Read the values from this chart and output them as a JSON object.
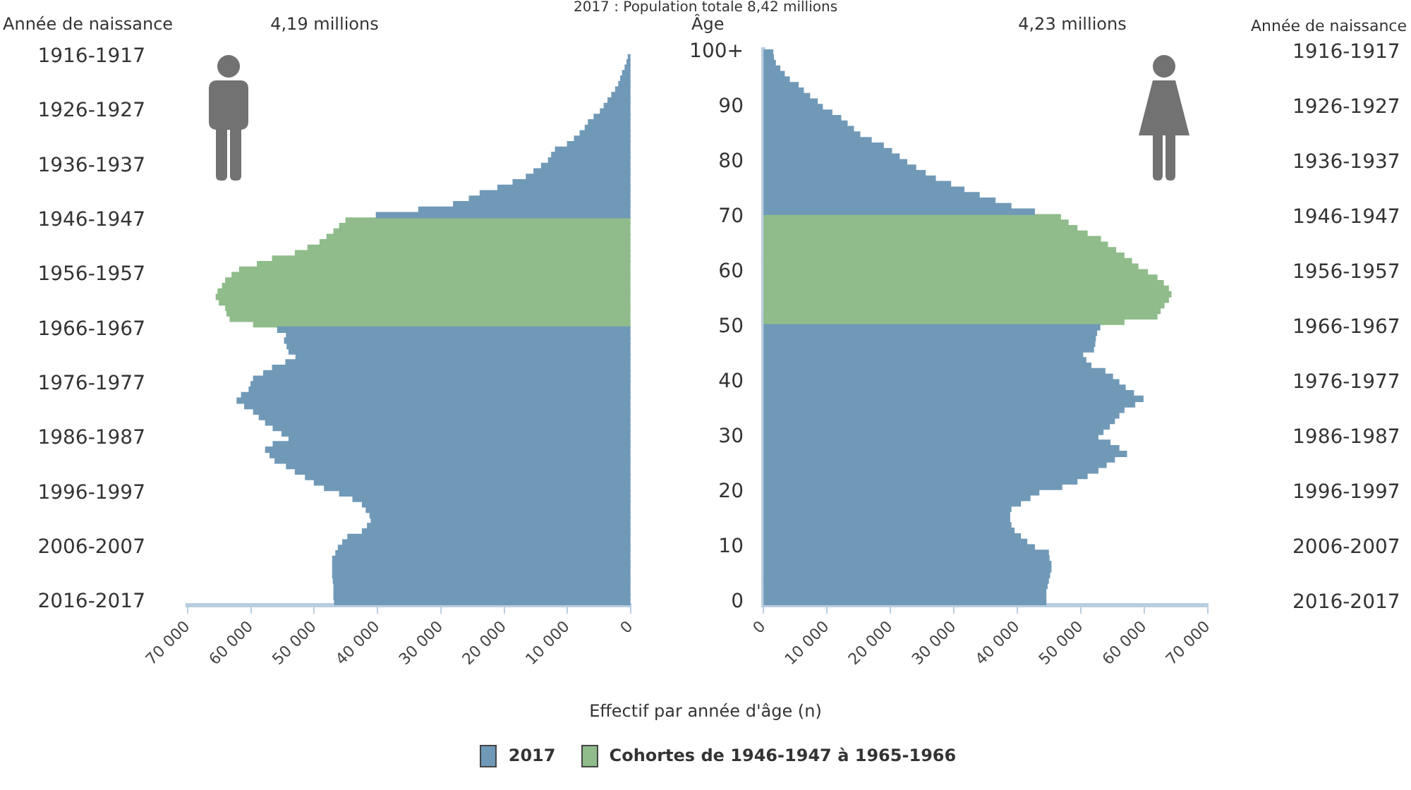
{
  "chart_data": [
    {
      "type": "bar",
      "orientation": "horizontal",
      "stacked": true,
      "title": "2017 : Population totale 8,42 millions",
      "subtitle": "4,19 millions",
      "ylabel": "Année de naissance",
      "xlabel": "Effectif par année d'âge (n)",
      "legend": "bottom",
      "grid": false,
      "categories": [
        "1916-1917",
        null,
        null,
        null,
        null,
        null,
        null,
        null,
        null,
        null,
        "1926-1927",
        null,
        null,
        null,
        null,
        null,
        null,
        null,
        null,
        null,
        "1936-1937",
        null,
        null,
        null,
        null,
        null,
        null,
        null,
        null,
        null,
        "1946-1947",
        null,
        null,
        null,
        null,
        null,
        null,
        null,
        null,
        null,
        "1956-1957",
        null,
        null,
        null,
        null,
        null,
        null,
        null,
        null,
        null,
        "1966-1967",
        null,
        null,
        null,
        null,
        null,
        null,
        null,
        null,
        null,
        "1976-1977",
        null,
        null,
        null,
        null,
        null,
        null,
        null,
        null,
        null,
        "1986-1987",
        null,
        null,
        null,
        null,
        null,
        null,
        null,
        null,
        null,
        "1996-1997",
        null,
        null,
        null,
        null,
        null,
        null,
        null,
        null,
        null,
        "2006-2007",
        null,
        null,
        null,
        null,
        null,
        null,
        null,
        null,
        null,
        "2016-2017"
      ],
      "xlim": [
        70000,
        0
      ],
      "xticks": [
        {
          "value": 70000,
          "label": "70 000"
        },
        {
          "value": 60000,
          "label": "60 000"
        },
        {
          "value": 50000,
          "label": "50 000"
        },
        {
          "value": 40000,
          "label": "40 000"
        },
        {
          "value": 30000,
          "label": "30 000"
        },
        {
          "value": 20000,
          "label": "20 000"
        },
        {
          "value": 10000,
          "label": "10 000"
        },
        0
      ],
      "series": [
        {
          "name": "2017",
          "color": "#7099b7",
          "values": [
            400,
            600,
            900,
            1300,
            1600,
            1900,
            2400,
            3000,
            3600,
            4200,
            4800,
            5800,
            6700,
            7200,
            8000,
            8900,
            10000,
            11900,
            12500,
            13000,
            14100,
            15300,
            16500,
            18600,
            21000,
            23800,
            25500,
            28000,
            33500,
            40200,
            null,
            null,
            null,
            null,
            null,
            null,
            null,
            null,
            null,
            null,
            null,
            null,
            null,
            null,
            null,
            null,
            null,
            null,
            null,
            null,
            55800,
            54400,
            54700,
            54300,
            54000,
            52900,
            54500,
            56600,
            58000,
            59600,
            60000,
            60300,
            61500,
            62200,
            61000,
            59600,
            58700,
            57700,
            56500,
            55100,
            54000,
            56500,
            57700,
            57000,
            56200,
            54400,
            53000,
            51400,
            50000,
            48400,
            46000,
            43900,
            42400,
            41800,
            41200,
            41000,
            41600,
            42400,
            44700,
            45500,
            46200,
            46600,
            47100,
            47100,
            47100,
            47100,
            47000,
            46900,
            46900,
            46900,
            46800
          ]
        },
        {
          "name": "Cohortes de 1946-1947 à 1965-1966",
          "color": "#8fbc8a",
          "values": [
            null,
            null,
            null,
            null,
            null,
            null,
            null,
            null,
            null,
            null,
            null,
            null,
            null,
            null,
            null,
            null,
            null,
            null,
            null,
            null,
            null,
            null,
            null,
            null,
            null,
            null,
            null,
            null,
            null,
            null,
            45000,
            46000,
            46900,
            48000,
            49100,
            51000,
            53000,
            56600,
            59000,
            61800,
            63000,
            64000,
            64500,
            65200,
            65500,
            65000,
            64000,
            63800,
            63300,
            59600,
            null,
            null,
            null,
            null,
            null,
            null,
            null,
            null,
            null,
            null,
            null,
            null,
            null,
            null,
            null,
            null,
            null,
            null,
            null,
            null,
            null,
            null,
            null,
            null,
            null,
            null,
            null,
            null,
            null,
            null,
            null,
            null,
            null,
            null,
            null,
            null,
            null,
            null,
            null,
            null,
            null,
            null,
            null,
            null,
            null,
            null,
            null,
            null,
            null,
            null,
            null
          ]
        }
      ]
    },
    {
      "type": "bar",
      "orientation": "horizontal",
      "stacked": true,
      "subtitle": "4,23 millions",
      "ylabel": "Âge",
      "y2label": "Année de naissance",
      "grid": false,
      "categories": [
        "100+",
        null,
        null,
        null,
        null,
        null,
        null,
        null,
        null,
        null,
        "90",
        null,
        null,
        null,
        null,
        null,
        null,
        null,
        null,
        null,
        "80",
        null,
        null,
        null,
        null,
        null,
        null,
        null,
        null,
        null,
        "70",
        null,
        null,
        null,
        null,
        null,
        null,
        null,
        null,
        null,
        "60",
        null,
        null,
        null,
        null,
        null,
        null,
        null,
        null,
        null,
        "50",
        null,
        null,
        null,
        null,
        null,
        null,
        null,
        null,
        null,
        "40",
        null,
        null,
        null,
        null,
        null,
        null,
        null,
        null,
        null,
        "30",
        null,
        null,
        null,
        null,
        null,
        null,
        null,
        null,
        null,
        "20",
        null,
        null,
        null,
        null,
        null,
        null,
        null,
        null,
        null,
        "10",
        null,
        null,
        null,
        null,
        null,
        null,
        null,
        null,
        null,
        "0"
      ],
      "y2_categories": [
        "1916-1917",
        null,
        null,
        null,
        null,
        null,
        null,
        null,
        null,
        null,
        "1926-1927",
        null,
        null,
        null,
        null,
        null,
        null,
        null,
        null,
        null,
        "1936-1937",
        null,
        null,
        null,
        null,
        null,
        null,
        null,
        null,
        null,
        "1946-1947",
        null,
        null,
        null,
        null,
        null,
        null,
        null,
        null,
        null,
        "1956-1957",
        null,
        null,
        null,
        null,
        null,
        null,
        null,
        null,
        null,
        "1966-1967",
        null,
        null,
        null,
        null,
        null,
        null,
        null,
        null,
        null,
        "1976-1977",
        null,
        null,
        null,
        null,
        null,
        null,
        null,
        null,
        null,
        "1986-1987",
        null,
        null,
        null,
        null,
        null,
        null,
        null,
        null,
        null,
        "1996-1997",
        null,
        null,
        null,
        null,
        null,
        null,
        null,
        null,
        null,
        "2006-2007",
        null,
        null,
        null,
        null,
        null,
        null,
        null,
        null,
        null,
        "2016-2017"
      ],
      "xlim": [
        0,
        70000
      ],
      "xticks": [
        0,
        {
          "value": 10000,
          "label": "10 000"
        },
        {
          "value": 20000,
          "label": "20 000"
        },
        {
          "value": 30000,
          "label": "30 000"
        },
        {
          "value": 40000,
          "label": "40 000"
        },
        {
          "value": 50000,
          "label": "50 000"
        },
        {
          "value": 60000,
          "label": "60 000"
        },
        {
          "value": 70000,
          "label": "70 000"
        }
      ],
      "series": [
        {
          "color": "#7099b7",
          "values": [
            1500,
            1600,
            1900,
            2600,
            3300,
            4100,
            5500,
            6300,
            7300,
            8500,
            9300,
            10800,
            12200,
            13200,
            14200,
            15200,
            17000,
            18900,
            20200,
            21400,
            22600,
            24000,
            25500,
            27100,
            29500,
            31600,
            34000,
            36500,
            39000,
            42700,
            null,
            null,
            null,
            null,
            null,
            null,
            null,
            null,
            null,
            null,
            null,
            null,
            null,
            null,
            null,
            null,
            null,
            null,
            null,
            null,
            53000,
            52500,
            52300,
            52200,
            52000,
            50300,
            50800,
            51600,
            53800,
            55000,
            56000,
            57000,
            58300,
            59800,
            58500,
            56800,
            56000,
            55300,
            54500,
            53500,
            52700,
            54600,
            56000,
            57200,
            55300,
            54000,
            52700,
            51000,
            49400,
            47000,
            43400,
            42000,
            40500,
            39000,
            38800,
            38800,
            39000,
            39500,
            40500,
            41500,
            42700,
            44900,
            45000,
            45300,
            45300,
            45100,
            44900,
            44700,
            44500,
            44500,
            44500
          ]
        },
        {
          "color": "#8fbc8a",
          "values": [
            null,
            null,
            null,
            null,
            null,
            null,
            null,
            null,
            null,
            null,
            null,
            null,
            null,
            null,
            null,
            null,
            null,
            null,
            null,
            null,
            null,
            null,
            null,
            null,
            null,
            null,
            null,
            null,
            null,
            null,
            46800,
            48000,
            49400,
            51000,
            53100,
            54200,
            55500,
            56800,
            58000,
            59000,
            60500,
            62000,
            63000,
            63800,
            64200,
            63800,
            63100,
            62500,
            62000,
            56800,
            null,
            null,
            null,
            null,
            null,
            null,
            null,
            null,
            null,
            null,
            null,
            null,
            null,
            null,
            null,
            null,
            null,
            null,
            null,
            null,
            null,
            null,
            null,
            null,
            null,
            null,
            null,
            null,
            null,
            null,
            null,
            null,
            null,
            null,
            null,
            null,
            null,
            null,
            null,
            null,
            null,
            null,
            null,
            null,
            null,
            null,
            null,
            null,
            null,
            null,
            null
          ]
        }
      ]
    }
  ]
}
